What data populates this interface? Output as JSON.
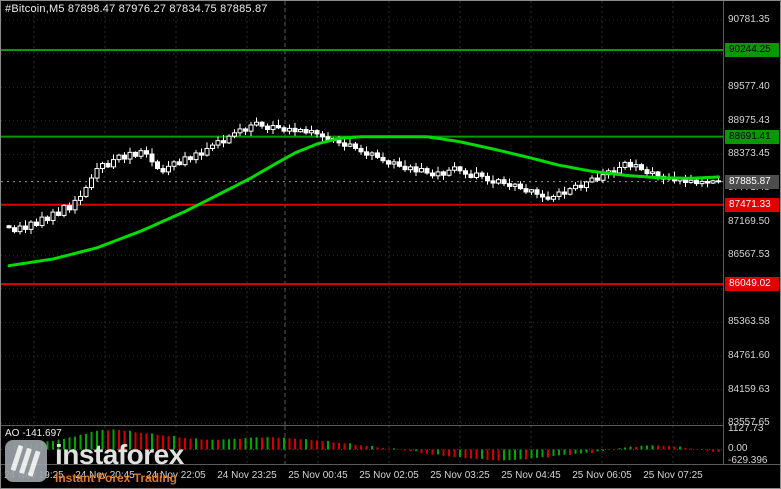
{
  "header": {
    "symbol_info": "#Bitcoin,M5 87898.47 87976.27 87834.75 87885.87",
    "symbol": "#Bitcoin",
    "timeframe": "M5",
    "open": "87898.47",
    "high": "87976.27",
    "low": "87834.75",
    "close": "87885.87"
  },
  "indicator": {
    "name": "AO",
    "value": "-141.697",
    "label": "AO -141.697"
  },
  "price_axis": {
    "grid_labels": [
      "90781.35",
      "90179.38",
      "89577.40",
      "88975.43",
      "88373.45",
      "87771.48",
      "87169.50",
      "86567.53",
      "85965.55",
      "85363.58",
      "84761.60",
      "84159.63",
      "83557.65"
    ],
    "badges": [
      {
        "value": "90244.25",
        "price": 90244.25,
        "color": "#089800",
        "text_color": "#000000",
        "kind": "resistance"
      },
      {
        "value": "88691.41",
        "price": 88691.41,
        "color": "#089800",
        "text_color": "#000000",
        "kind": "resistance"
      },
      {
        "value": "87885.87",
        "price": 87885.87,
        "color": "#4d4d4d",
        "text_color": "#ffffff",
        "kind": "current-price"
      },
      {
        "value": "87471.33",
        "price": 87471.33,
        "color": "#e00000",
        "text_color": "#ffffff",
        "kind": "support"
      },
      {
        "value": "86049.02",
        "price": 86049.02,
        "color": "#e00000",
        "text_color": "#ffffff",
        "kind": "support"
      }
    ]
  },
  "indicator_axis": {
    "labels": [
      {
        "text": "1127.73",
        "level": 1127.73
      },
      {
        "text": "0.00",
        "level": 0
      },
      {
        "text": "-629.396",
        "level": -629.396
      }
    ]
  },
  "time_axis": {
    "labels": [
      "24 Nov 19:25",
      "24 Nov 20:45",
      "24 Nov 22:05",
      "24 Nov 23:25",
      "25 Nov 00:45",
      "25 Nov 02:05",
      "25 Nov 03:25",
      "25 Nov 04:45",
      "25 Nov 06:05",
      "25 Nov 07:25"
    ]
  },
  "watermark": {
    "brand": "instaforex",
    "tagline": "Instant Forex Trading",
    "tagline_color": "#f28024",
    "logo": "instaforex-logo"
  },
  "chart_data": {
    "type": "candlestick",
    "title": "#Bitcoin M5 with Awesome Oscillator",
    "x_axis": {
      "tick_labels": [
        "24 Nov 19:25",
        "24 Nov 20:45",
        "24 Nov 22:05",
        "24 Nov 23:25",
        "25 Nov 00:45",
        "25 Nov 02:05",
        "25 Nov 03:25",
        "25 Nov 04:45",
        "25 Nov 06:05",
        "25 Nov 07:25"
      ],
      "minutes_per_candle": 5
    },
    "y_axis": {
      "top_label_price": 90781.35,
      "grid_step": 601.975,
      "visible_range": [
        83400,
        90900
      ]
    },
    "levels": [
      {
        "price": 90244.25,
        "color": "#089800",
        "role": "resistance"
      },
      {
        "price": 88691.41,
        "color": "#089800",
        "role": "resistance"
      },
      {
        "price": 87471.33,
        "color": "#e00000",
        "role": "support"
      },
      {
        "price": 86049.02,
        "color": "#e00000",
        "role": "support"
      }
    ],
    "current_price": 87885.87,
    "ohlc_header": {
      "open": 87898.47,
      "high": 87976.27,
      "low": 87834.75,
      "close": 87885.87
    },
    "candles": {
      "count": 130,
      "closes": [
        87060,
        86990,
        87090,
        87030,
        87160,
        87100,
        87250,
        87190,
        87340,
        87280,
        87460,
        87380,
        87550,
        87620,
        87780,
        87950,
        88120,
        88210,
        88150,
        88280,
        88360,
        88290,
        88410,
        88340,
        88440,
        88380,
        88240,
        88120,
        88060,
        88160,
        88240,
        88190,
        88330,
        88280,
        88400,
        88360,
        88480,
        88540,
        88620,
        88580,
        88700,
        88760,
        88830,
        88790,
        88900,
        88950,
        88880,
        88820,
        88890,
        88850,
        88790,
        88840,
        88780,
        88820,
        88760,
        88800,
        88740,
        88690,
        88620,
        88660,
        88580,
        88520,
        88560,
        88480,
        88420,
        88360,
        88400,
        88320,
        88260,
        88200,
        88240,
        88160,
        88100,
        88150,
        88060,
        88120,
        88040,
        87990,
        88060,
        88000,
        88090,
        88150,
        88080,
        88020,
        87960,
        88040,
        87980,
        87900,
        87860,
        87920,
        87850,
        87800,
        87840,
        87760,
        87700,
        87740,
        87660,
        87610,
        87570,
        87620,
        87700,
        87660,
        87760,
        87820,
        87780,
        87880,
        87950,
        87910,
        88010,
        88080,
        88040,
        88140,
        88230,
        88150,
        88190,
        88100,
        88030,
        88060,
        87980,
        87930,
        87960,
        87900,
        87940,
        87870,
        87910,
        87850,
        87890,
        87860,
        87900,
        87885.87
      ]
    },
    "ma": {
      "name": "moving-average",
      "color": "#00dc00",
      "anchors": [
        [
          0,
          86380
        ],
        [
          8,
          86500
        ],
        [
          16,
          86700
        ],
        [
          24,
          87000
        ],
        [
          32,
          87350
        ],
        [
          38,
          87650
        ],
        [
          44,
          87950
        ],
        [
          48,
          88180
        ],
        [
          52,
          88400
        ],
        [
          56,
          88560
        ],
        [
          60,
          88660
        ],
        [
          64,
          88690
        ],
        [
          76,
          88690
        ],
        [
          82,
          88600
        ],
        [
          88,
          88470
        ],
        [
          94,
          88330
        ],
        [
          100,
          88180
        ],
        [
          106,
          88070
        ],
        [
          112,
          88000
        ],
        [
          118,
          87955
        ],
        [
          124,
          87945
        ],
        [
          129,
          87970
        ]
      ]
    },
    "ao": {
      "name": "Awesome Oscillator",
      "up_color": "#00a800",
      "down_color": "#d40000",
      "range": [
        -700,
        1200
      ],
      "last_value": -141.697,
      "max_label": 1127.73,
      "min_label": -629.396,
      "values": [
        150,
        205,
        240,
        300,
        310,
        365,
        390,
        455,
        480,
        550,
        590,
        680,
        720,
        820,
        870,
        990,
        1040,
        1090,
        1060,
        1120,
        1090,
        1030,
        1050,
        960,
        930,
        890,
        900,
        820,
        790,
        740,
        760,
        670,
        640,
        600,
        615,
        560,
        545,
        550,
        540,
        565,
        570,
        600,
        590,
        640,
        660,
        680,
        665,
        690,
        680,
        655,
        665,
        620,
        600,
        570,
        580,
        520,
        500,
        465,
        475,
        400,
        370,
        330,
        345,
        260,
        230,
        190,
        205,
        120,
        90,
        50,
        60,
        -20,
        -60,
        -110,
        -95,
        -200,
        -240,
        -290,
        -275,
        -360,
        -390,
        -430,
        -415,
        -480,
        -510,
        -540,
        -525,
        -580,
        -600,
        -620,
        -605,
        -590,
        -580,
        -545,
        -555,
        -495,
        -470,
        -430,
        -445,
        -360,
        -330,
        -290,
        -305,
        -240,
        -220,
        -180,
        -195,
        -110,
        -80,
        -20,
        -40,
        70,
        110,
        160,
        145,
        205,
        220,
        240,
        230,
        215,
        200,
        150,
        165,
        90,
        60,
        10,
        25,
        -80,
        -120,
        -141.697
      ]
    }
  }
}
